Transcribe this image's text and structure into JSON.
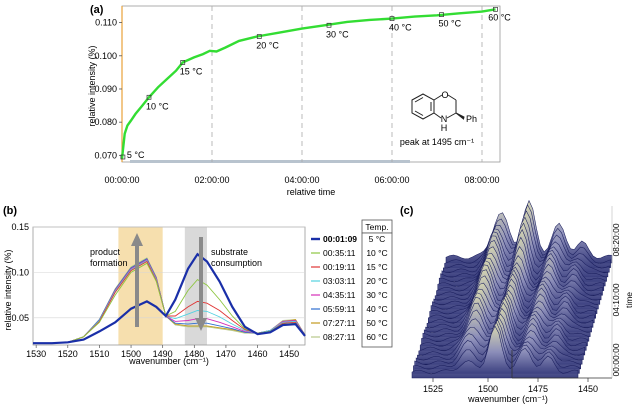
{
  "chart_data": [
    {
      "panel": "(a)",
      "type": "line",
      "xlabel": "relative time",
      "ylabel": "relative intensity (%)",
      "x_unit": "hours",
      "xlim": [
        0,
        8.4
      ],
      "ylim": [
        0.068,
        0.115
      ],
      "x_ticks": [
        "00:00:00",
        "02:00:00",
        "04:00:00",
        "06:00:00",
        "08:00:00"
      ],
      "y_ticks": [
        "0.070",
        "0.080",
        "0.090",
        "0.100",
        "0.110"
      ],
      "series": [
        {
          "name": "peak at 1495 cm-1",
          "color": "#33dd33",
          "x": [
            0,
            0.02,
            0.06,
            0.12,
            0.2,
            0.3,
            0.45,
            0.6,
            0.8,
            1.0,
            1.2,
            1.35,
            1.6,
            1.8,
            1.95,
            2.1,
            2.3,
            2.6,
            3.0,
            3.5,
            4.0,
            4.5,
            5.0,
            5.5,
            6.0,
            6.5,
            7.0,
            7.5,
            8.0,
            8.3
          ],
          "y": [
            0.069,
            0.0715,
            0.0765,
            0.079,
            0.0805,
            0.0825,
            0.085,
            0.0875,
            0.0905,
            0.093,
            0.0955,
            0.098,
            0.0995,
            0.1005,
            0.1015,
            0.1013,
            0.1025,
            0.1045,
            0.1058,
            0.107,
            0.1082,
            0.1092,
            0.1102,
            0.1108,
            0.1112,
            0.1118,
            0.1122,
            0.1128,
            0.1133,
            0.114
          ]
        }
      ],
      "annotations": [
        {
          "label": "5 °C",
          "x": 0.02,
          "y": 0.0695
        },
        {
          "label": "10 °C",
          "x": 0.6,
          "y": 0.0875
        },
        {
          "label": "15 °C",
          "x": 1.35,
          "y": 0.098
        },
        {
          "label": "20 °C",
          "x": 3.05,
          "y": 0.1058
        },
        {
          "label": "30 °C",
          "x": 4.6,
          "y": 0.1092
        },
        {
          "label": "40 °C",
          "x": 6.0,
          "y": 0.1112
        },
        {
          "label": "50 °C",
          "x": 7.1,
          "y": 0.1124
        },
        {
          "label": "60 °C",
          "x": 8.3,
          "y": 0.114
        }
      ],
      "vertical_markers_h": [
        2.0,
        4.0,
        6.0,
        8.0
      ],
      "inset": {
        "nh": "N",
        "h": "H",
        "o": "O",
        "ph": "Ph",
        "caption": "peak at 1495 cm⁻¹"
      }
    },
    {
      "panel": "(b)",
      "type": "line",
      "xlabel": "wavenumber (cm⁻¹)",
      "ylabel": "relative intensity (%)",
      "xlim": [
        1531,
        1445
      ],
      "ylim": [
        0.02,
        0.15
      ],
      "x_ticks": [
        1530,
        1520,
        1510,
        1500,
        1490,
        1480,
        1470,
        1460,
        1450
      ],
      "y_ticks": [
        "0.05",
        "0.10",
        "0.15"
      ],
      "shaded_regions": [
        {
          "from": 1504,
          "to": 1490,
          "color": "#f6dfae",
          "label": "product\nformation"
        },
        {
          "from": 1483,
          "to": 1476,
          "color": "#d9d9d9",
          "label": "substrate\nconsumption"
        }
      ],
      "legend_header": "Temp.",
      "wavenumbers": [
        1531,
        1525,
        1520,
        1515,
        1510,
        1505,
        1500,
        1495,
        1492,
        1489,
        1486,
        1482,
        1479,
        1476,
        1472,
        1468,
        1464,
        1460,
        1456,
        1452,
        1448,
        1445
      ],
      "series": [
        {
          "name": "00:01:09",
          "temp": "5 °C",
          "color": "#1a2fa8",
          "bold": true,
          "values": [
            0.022,
            0.022,
            0.023,
            0.026,
            0.035,
            0.045,
            0.06,
            0.068,
            0.062,
            0.052,
            0.07,
            0.104,
            0.12,
            0.112,
            0.09,
            0.062,
            0.04,
            0.032,
            0.034,
            0.042,
            0.043,
            0.03
          ]
        },
        {
          "name": "00:35:11",
          "temp": "10 °C",
          "color": "#8ec641",
          "values": [
            0.022,
            0.022,
            0.023,
            0.029,
            0.045,
            0.075,
            0.1,
            0.11,
            0.09,
            0.052,
            0.057,
            0.08,
            0.092,
            0.086,
            0.07,
            0.052,
            0.038,
            0.033,
            0.035,
            0.043,
            0.044,
            0.031
          ]
        },
        {
          "name": "00:19:11",
          "temp": "15 °C",
          "color": "#e03535",
          "values": [
            0.022,
            0.022,
            0.023,
            0.029,
            0.046,
            0.078,
            0.102,
            0.112,
            0.091,
            0.052,
            0.052,
            0.062,
            0.068,
            0.066,
            0.058,
            0.047,
            0.037,
            0.033,
            0.035,
            0.044,
            0.045,
            0.031
          ]
        },
        {
          "name": "03:03:11",
          "temp": "20 °C",
          "color": "#53d2e0",
          "values": [
            0.022,
            0.022,
            0.023,
            0.029,
            0.047,
            0.079,
            0.103,
            0.113,
            0.092,
            0.052,
            0.049,
            0.054,
            0.058,
            0.057,
            0.051,
            0.043,
            0.036,
            0.033,
            0.036,
            0.045,
            0.046,
            0.031
          ]
        },
        {
          "name": "04:35:11",
          "temp": "30 °C",
          "color": "#d42fb8",
          "values": [
            0.022,
            0.022,
            0.023,
            0.029,
            0.047,
            0.08,
            0.104,
            0.114,
            0.093,
            0.052,
            0.046,
            0.047,
            0.049,
            0.049,
            0.045,
            0.04,
            0.035,
            0.033,
            0.036,
            0.046,
            0.047,
            0.031
          ]
        },
        {
          "name": "05:59:11",
          "temp": "40 °C",
          "color": "#2f6fd0",
          "values": [
            0.022,
            0.022,
            0.023,
            0.029,
            0.048,
            0.081,
            0.105,
            0.115,
            0.094,
            0.052,
            0.044,
            0.043,
            0.044,
            0.044,
            0.041,
            0.038,
            0.034,
            0.033,
            0.036,
            0.046,
            0.047,
            0.031
          ]
        },
        {
          "name": "07:27:11",
          "temp": "50 °C",
          "color": "#c39a1e",
          "values": [
            0.022,
            0.022,
            0.023,
            0.029,
            0.048,
            0.081,
            0.105,
            0.115,
            0.094,
            0.052,
            0.043,
            0.041,
            0.041,
            0.041,
            0.039,
            0.037,
            0.034,
            0.033,
            0.036,
            0.046,
            0.048,
            0.031
          ]
        },
        {
          "name": "08:27:11",
          "temp": "60 °C",
          "color": "#b7c98a",
          "values": [
            0.022,
            0.022,
            0.023,
            0.029,
            0.048,
            0.082,
            0.106,
            0.116,
            0.095,
            0.052,
            0.042,
            0.04,
            0.04,
            0.04,
            0.038,
            0.036,
            0.033,
            0.033,
            0.036,
            0.047,
            0.048,
            0.031
          ]
        }
      ]
    },
    {
      "panel": "(c)",
      "type": "area",
      "description": "3D waterfall of IR spectra over time",
      "xlabel": "wavenumber (cm⁻¹)",
      "ylabel": "time",
      "x_ticks": [
        1525,
        1500,
        1475,
        1450
      ],
      "time_ticks": [
        "00:00:00",
        "04:10:00",
        "08:20:00"
      ]
    }
  ]
}
